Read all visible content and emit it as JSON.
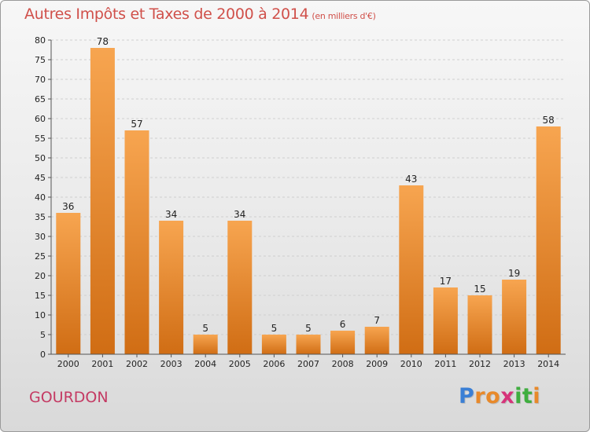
{
  "chart_data": {
    "type": "bar",
    "title": "Autres Impôts et Taxes de 2000 à 2014",
    "subtitle": "(en milliers d'€)",
    "categories": [
      "2000",
      "2001",
      "2002",
      "2003",
      "2004",
      "2005",
      "2006",
      "2007",
      "2008",
      "2009",
      "2010",
      "2011",
      "2012",
      "2013",
      "2014"
    ],
    "values": [
      36,
      78,
      57,
      34,
      5,
      34,
      5,
      5,
      6,
      7,
      43,
      17,
      15,
      19,
      58
    ],
    "ylim": [
      0,
      80
    ],
    "yticks": [
      0,
      5,
      10,
      15,
      20,
      25,
      30,
      35,
      40,
      45,
      50,
      55,
      60,
      65,
      70,
      75,
      80
    ],
    "grid": true,
    "data_labels": true,
    "bar_color": "#f0922e"
  },
  "footer": {
    "city": "GOURDON",
    "logo_letters": [
      "P",
      "r",
      "o",
      "x",
      "i",
      "t",
      "i"
    ],
    "logo_colors": [
      "#3a7fd5",
      "#e8892a",
      "#e8892a",
      "#d6337a",
      "#3fae3f",
      "#3fae3f",
      "#e8892a"
    ]
  }
}
